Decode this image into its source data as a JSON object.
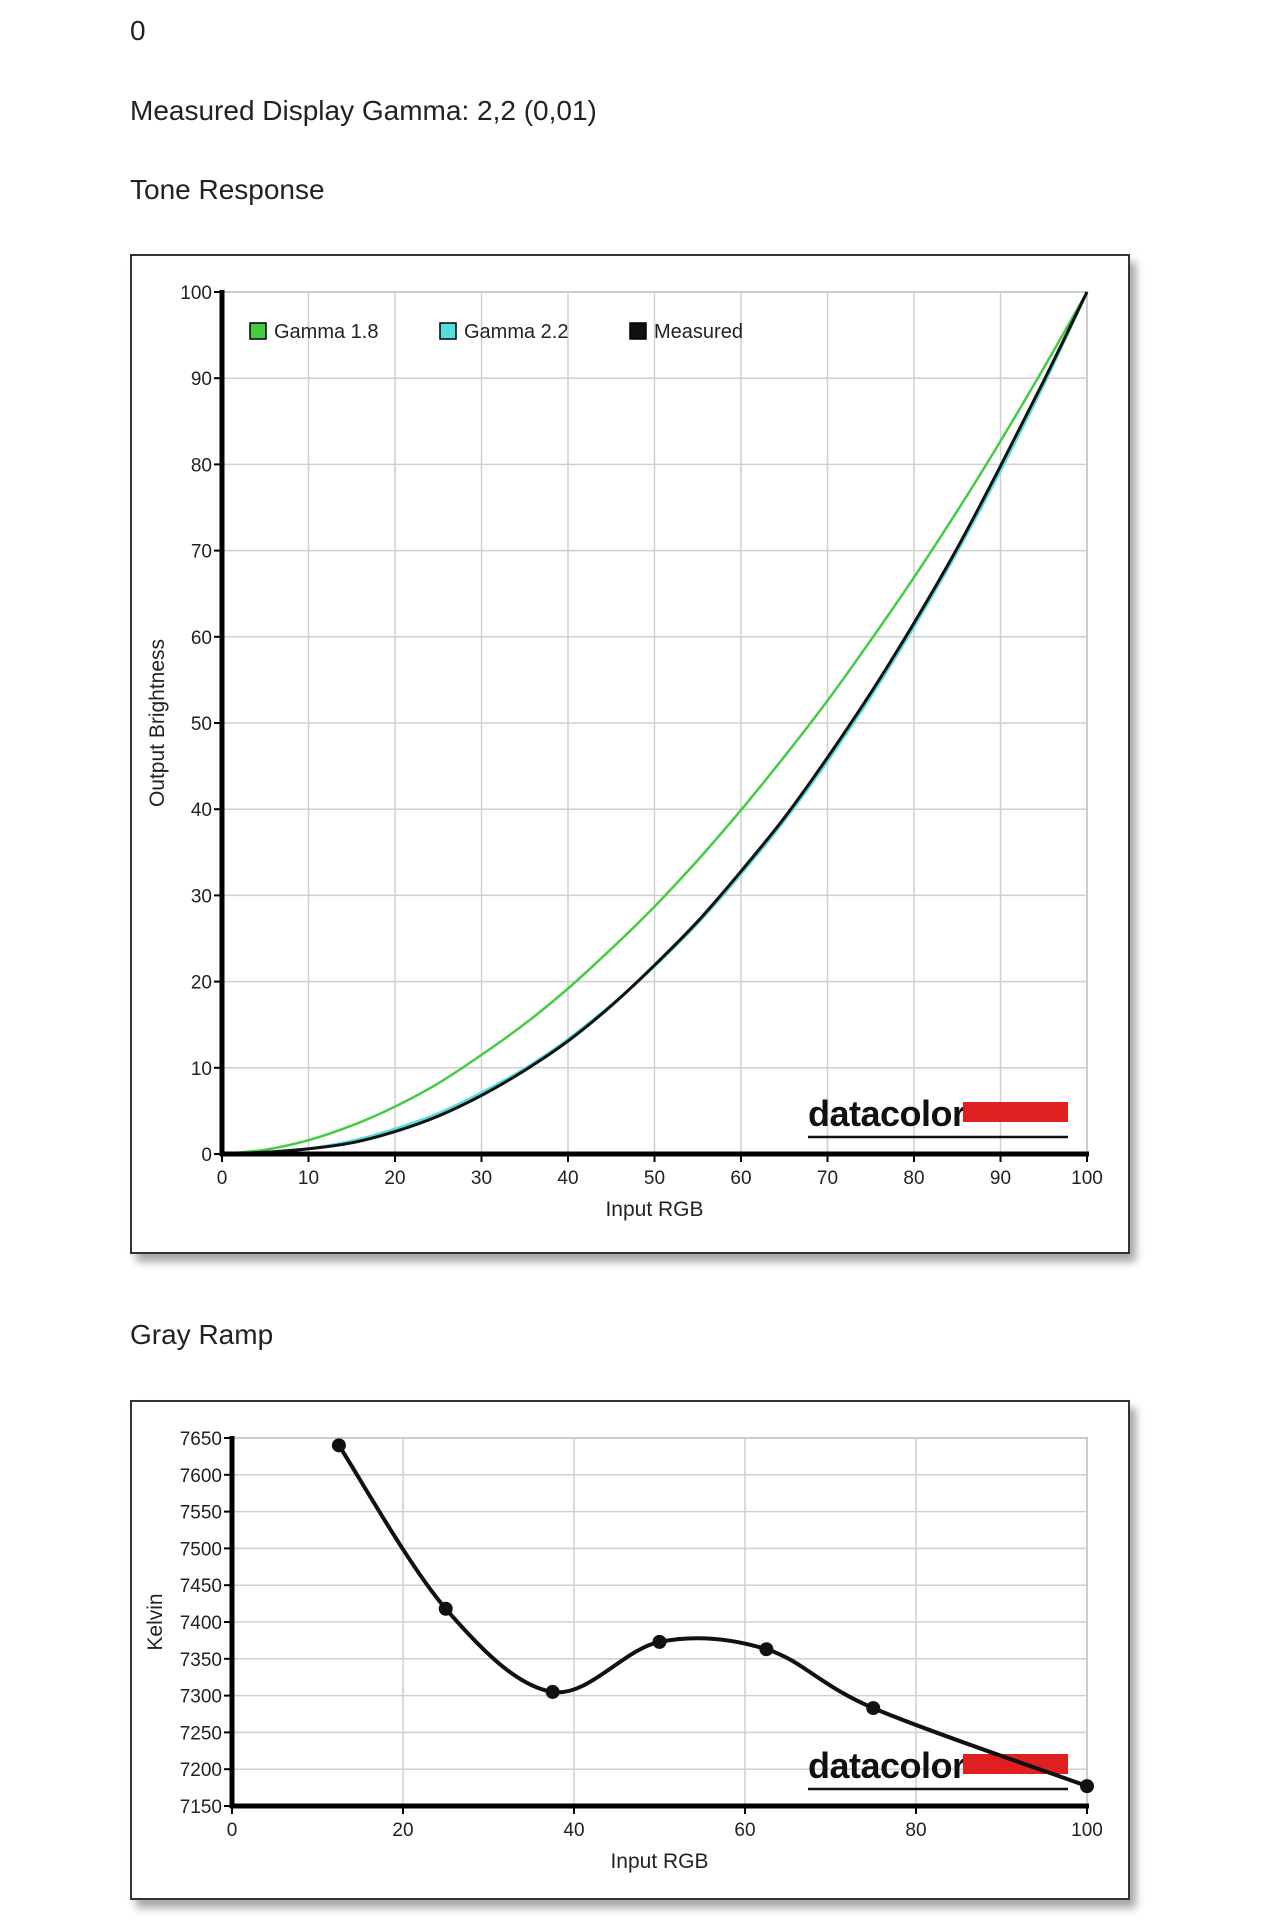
{
  "page": {
    "top_value": "0",
    "gamma_text": "Measured Display Gamma: 2,2 (0,01)",
    "tone_heading": "Tone Response",
    "gray_heading": "Gray Ramp",
    "brand": "datacolor"
  },
  "colors": {
    "gamma18": "#44cc44",
    "gamma22": "#55dddd",
    "measured": "#111111",
    "brand_red": "#e02020"
  },
  "chart_data": [
    {
      "type": "line",
      "title": "Tone Response",
      "xlabel": "Input RGB",
      "ylabel": "Output Brightness",
      "xlim": [
        0,
        100
      ],
      "ylim": [
        0,
        100
      ],
      "xticks": [
        0,
        10,
        20,
        30,
        40,
        50,
        60,
        70,
        80,
        90,
        100
      ],
      "yticks": [
        0,
        10,
        20,
        30,
        40,
        50,
        60,
        70,
        80,
        90,
        100
      ],
      "grid": true,
      "legend_position": "top-left",
      "series": [
        {
          "name": "Gamma 1.8",
          "color": "#44cc44",
          "x": [
            0,
            5,
            10,
            15,
            20,
            25,
            30,
            35,
            40,
            45,
            50,
            55,
            60,
            65,
            70,
            75,
            80,
            85,
            90,
            95,
            100
          ],
          "y": [
            0,
            0.5,
            1.6,
            3.3,
            5.5,
            8.2,
            11.5,
            15.1,
            19.2,
            23.8,
            28.7,
            34.1,
            39.9,
            46.1,
            52.6,
            59.6,
            66.9,
            74.6,
            82.7,
            91.2,
            100
          ]
        },
        {
          "name": "Gamma 2.2",
          "color": "#55dddd",
          "x": [
            0,
            5,
            10,
            15,
            20,
            25,
            30,
            35,
            40,
            45,
            50,
            55,
            60,
            65,
            70,
            75,
            80,
            85,
            90,
            95,
            100
          ],
          "y": [
            0,
            0.1,
            0.6,
            1.5,
            2.9,
            4.7,
            7.1,
            9.9,
            13.3,
            17.3,
            21.8,
            26.8,
            32.5,
            38.7,
            45.6,
            53.1,
            61.2,
            69.9,
            79.3,
            89.3,
            100
          ]
        },
        {
          "name": "Measured",
          "color": "#111111",
          "x": [
            0,
            5,
            10,
            15,
            20,
            25,
            30,
            35,
            40,
            45,
            50,
            55,
            60,
            65,
            70,
            75,
            80,
            85,
            90,
            95,
            100
          ],
          "y": [
            0,
            0.2,
            0.6,
            1.3,
            2.6,
            4.4,
            6.8,
            9.7,
            13.1,
            17.2,
            21.9,
            27.0,
            32.8,
            39.0,
            46.0,
            53.5,
            61.6,
            70.3,
            79.8,
            89.7,
            100
          ]
        }
      ]
    },
    {
      "type": "line",
      "title": "Gray Ramp",
      "xlabel": "Input RGB",
      "ylabel": "Kelvin",
      "xlim": [
        0,
        100
      ],
      "ylim": [
        7150,
        7650
      ],
      "xticks": [
        0,
        20,
        40,
        60,
        80,
        100
      ],
      "yticks": [
        7150,
        7200,
        7250,
        7300,
        7350,
        7400,
        7450,
        7500,
        7550,
        7600,
        7650
      ],
      "grid": true,
      "series": [
        {
          "color": "#111111",
          "x": [
            12.5,
            25,
            37.5,
            50,
            62.5,
            75,
            100
          ],
          "y": [
            7640,
            7418,
            7305,
            7373,
            7363,
            7283,
            7177
          ]
        }
      ]
    }
  ]
}
